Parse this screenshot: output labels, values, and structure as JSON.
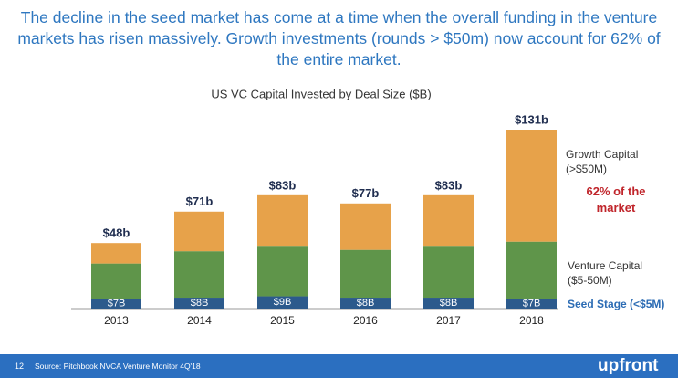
{
  "header": {
    "title": "The decline in the seed market has come at a time when the overall funding in the venture markets has risen massively. Growth investments (rounds > $50m) now account for 62% of the entire market."
  },
  "chart_data": {
    "type": "stacked-bar",
    "title": "US VC Capital Invested by Deal Size ($B)",
    "categories": [
      "2013",
      "2014",
      "2015",
      "2016",
      "2017",
      "2018"
    ],
    "series": [
      {
        "name": "Seed Stage (<$5M)",
        "color": "#2c5a8c",
        "values": [
          7,
          8,
          9,
          8,
          8,
          7
        ],
        "value_labels": [
          "$7B",
          "$8B",
          "$9B",
          "$8B",
          "$8B",
          "$7B"
        ]
      },
      {
        "name": "Venture Capital ($5-50M)",
        "color": "#5f954a",
        "values": [
          26,
          34,
          37,
          35,
          38,
          42
        ]
      },
      {
        "name": "Growth Capital (>$50M)",
        "color": "#e7a24a",
        "values": [
          15,
          29,
          37,
          34,
          37,
          82
        ]
      }
    ],
    "totals": {
      "values": [
        48,
        71,
        83,
        77,
        83,
        131
      ],
      "value_labels": [
        "$48b",
        "$71b",
        "$83b",
        "$77b",
        "$83b",
        "$131b"
      ]
    },
    "annotation": "62% of the market"
  },
  "footer": {
    "page": "12",
    "source": "Source: Pitchbook NVCA Venture Monitor 4Q'18",
    "logo": "upfront"
  }
}
